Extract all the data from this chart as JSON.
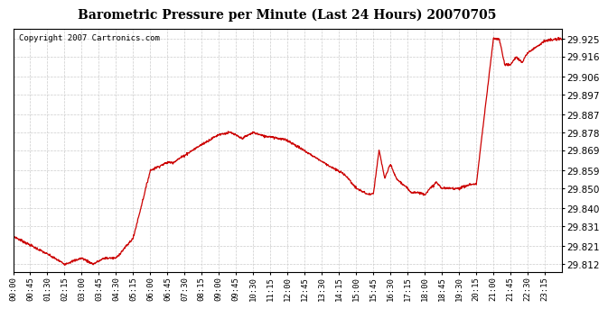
{
  "title": "Barometric Pressure per Minute (Last 24 Hours) 20070705",
  "copyright": "Copyright 2007 Cartronics.com",
  "line_color": "#cc0000",
  "background_color": "#ffffff",
  "plot_bg_color": "#ffffff",
  "grid_color": "#cccccc",
  "yticks": [
    29.812,
    29.821,
    29.831,
    29.84,
    29.85,
    29.859,
    29.869,
    29.878,
    29.887,
    29.897,
    29.906,
    29.916,
    29.925
  ],
  "ylim": [
    29.808,
    29.93
  ],
  "xtick_labels": [
    "00:00",
    "00:45",
    "01:30",
    "02:15",
    "03:00",
    "03:45",
    "04:30",
    "05:15",
    "06:00",
    "06:45",
    "07:30",
    "08:15",
    "09:00",
    "09:45",
    "10:30",
    "11:15",
    "12:00",
    "12:45",
    "13:30",
    "14:15",
    "15:00",
    "15:45",
    "16:30",
    "17:15",
    "18:00",
    "18:45",
    "19:30",
    "20:15",
    "21:00",
    "21:45",
    "22:30",
    "23:15"
  ]
}
